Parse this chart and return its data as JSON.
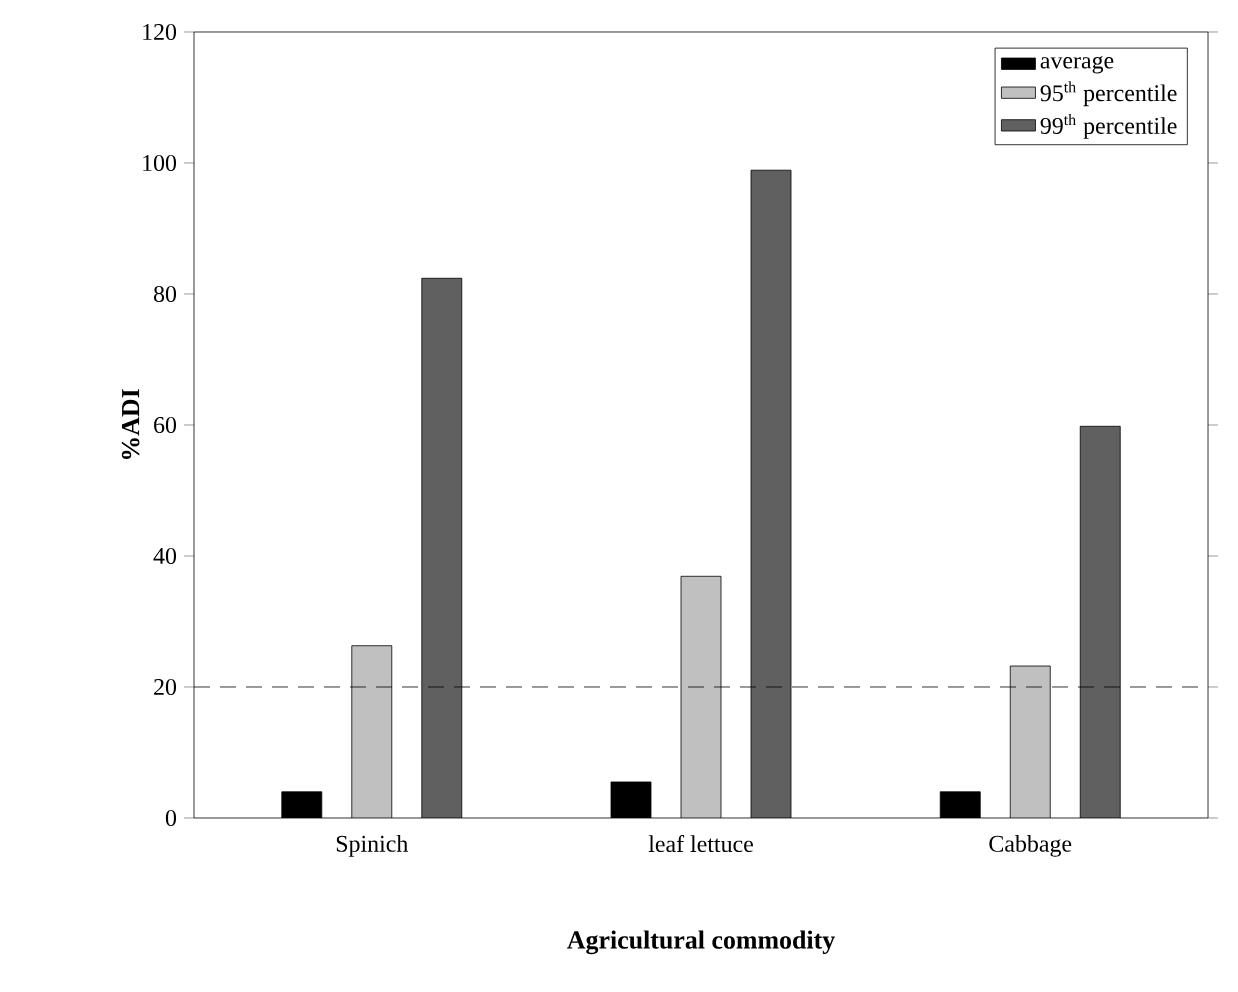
{
  "chart_data": {
    "type": "bar",
    "xlabel": "Agricultural commodity",
    "ylabel": "%ADI",
    "categories": [
      "Spinich",
      "leaf lettuce",
      "Cabbage"
    ],
    "series": [
      {
        "name": "average",
        "color": "#000000",
        "values": [
          4.0,
          5.5,
          4.0
        ]
      },
      {
        "name": "95$^{th}$ percentile",
        "color": "#c0c0c0",
        "values": [
          26.3,
          36.9,
          23.2
        ]
      },
      {
        "name": "99$^{th}$ percentile",
        "color": "#606060",
        "values": [
          82.4,
          98.9,
          59.8
        ]
      }
    ],
    "ylim": [
      0,
      120
    ],
    "yticks": [
      0,
      20,
      40,
      60,
      80,
      100,
      120
    ],
    "ref_lines": [
      {
        "axis": "y",
        "value": 20,
        "line_style": "dashed",
        "color": "#000000"
      }
    ],
    "legend": "top right",
    "grid": false
  }
}
